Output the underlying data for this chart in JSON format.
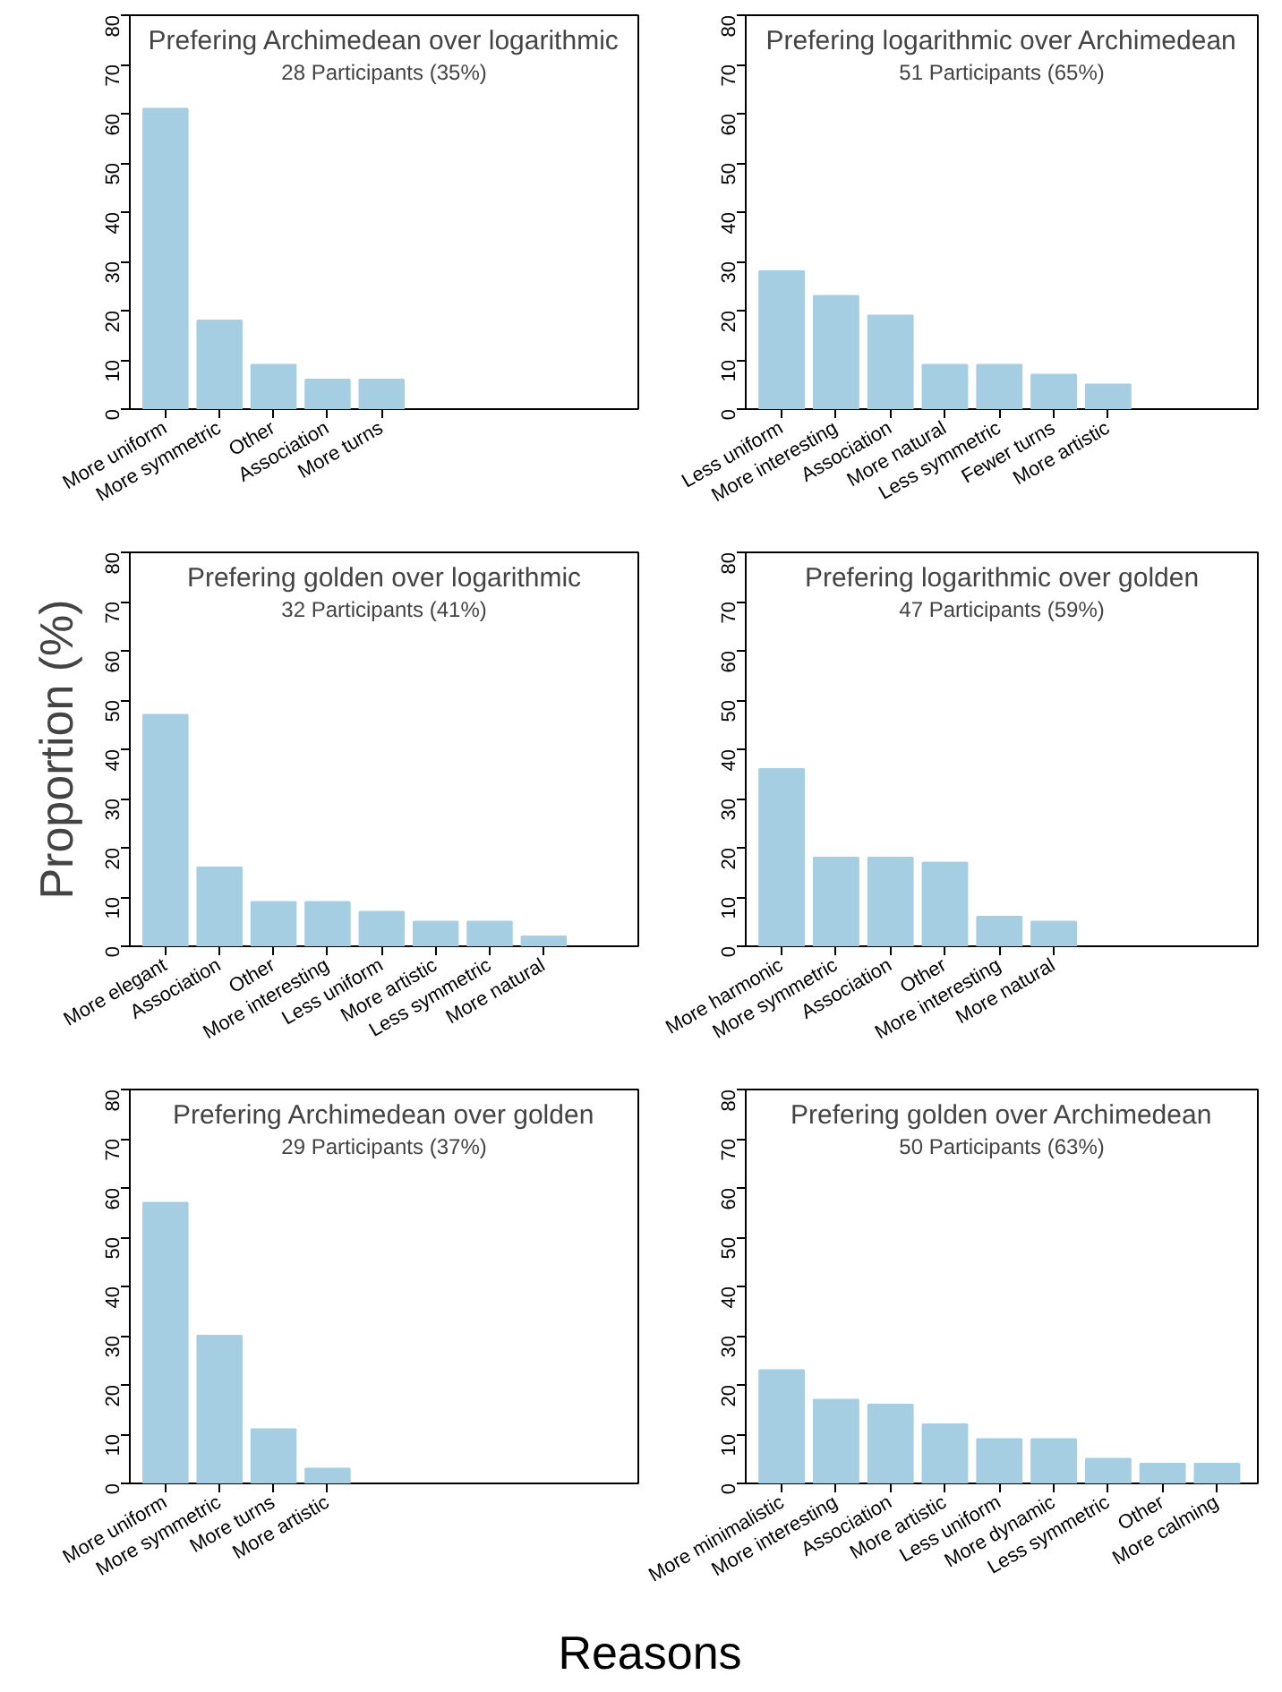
{
  "chart_data": [
    {
      "type": "bar",
      "title": "Prefering Archimedean over logarithmic",
      "subtitle": "28 Participants (35%)",
      "categories": [
        "More uniform",
        "More symmetric",
        "Other",
        "Association",
        "More turns"
      ],
      "values": [
        61,
        18,
        9,
        6,
        6
      ],
      "color": "#a6cee3",
      "ylim": [
        0,
        80
      ],
      "yticks": [
        0,
        10,
        20,
        30,
        40,
        50,
        60,
        70,
        80
      ],
      "grid": false
    },
    {
      "type": "bar",
      "title": "Prefering logarithmic over Archimedean",
      "subtitle": "51 Participants (65%)",
      "categories": [
        "Less uniform",
        "More interesting",
        "Association",
        "More natural",
        "Less symmetric",
        "Fewer turns",
        "More artistic"
      ],
      "values": [
        28,
        23,
        19,
        9,
        9,
        7,
        5
      ],
      "color": "#a6cee3",
      "ylim": [
        0,
        80
      ],
      "yticks": [
        0,
        10,
        20,
        30,
        40,
        50,
        60,
        70,
        80
      ],
      "grid": false
    },
    {
      "type": "bar",
      "title": "Prefering golden over logarithmic",
      "subtitle": "32 Participants (41%)",
      "ylabel": "Proportion (%)",
      "categories": [
        "More elegant",
        "Association",
        "Other",
        "More interesting",
        "Less uniform",
        "More artistic",
        "Less symmetric",
        "More natural"
      ],
      "values": [
        47,
        16,
        9,
        9,
        7,
        5,
        5,
        2
      ],
      "color": "#a6cee3",
      "ylim": [
        0,
        80
      ],
      "yticks": [
        0,
        10,
        20,
        30,
        40,
        50,
        60,
        70,
        80
      ],
      "grid": false
    },
    {
      "type": "bar",
      "title": "Prefering logarithmic over golden",
      "subtitle": "47 Participants (59%)",
      "categories": [
        "More harmonic",
        "More symmetric",
        "Association",
        "Other",
        "More interesting",
        "More natural"
      ],
      "values": [
        36,
        18,
        18,
        17,
        6,
        5
      ],
      "color": "#a6cee3",
      "ylim": [
        0,
        80
      ],
      "yticks": [
        0,
        10,
        20,
        30,
        40,
        50,
        60,
        70,
        80
      ],
      "grid": false
    },
    {
      "type": "bar",
      "title": "Prefering Archimedean over golden",
      "subtitle": "29 Participants (37%)",
      "xlabel": "Reasons",
      "categories": [
        "More uniform",
        "More symmetric",
        "More turns",
        "More artistic"
      ],
      "values": [
        57,
        30,
        11,
        3
      ],
      "color": "#a6cee3",
      "ylim": [
        0,
        80
      ],
      "yticks": [
        0,
        10,
        20,
        30,
        40,
        50,
        60,
        70,
        80
      ],
      "grid": false
    },
    {
      "type": "bar",
      "title": "Prefering golden over Archimedean",
      "subtitle": "50 Participants (63%)",
      "categories": [
        "More minimalistic",
        "More interesting",
        "Association",
        "More artistic",
        "Less uniform",
        "More dynamic",
        "Less symmetric",
        "Other",
        "More calming"
      ],
      "values": [
        23,
        17,
        16,
        12,
        9,
        9,
        5,
        4,
        4
      ],
      "color": "#a6cee3",
      "ylim": [
        0,
        80
      ],
      "yticks": [
        0,
        10,
        20,
        30,
        40,
        50,
        60,
        70,
        80
      ],
      "grid": false
    }
  ]
}
